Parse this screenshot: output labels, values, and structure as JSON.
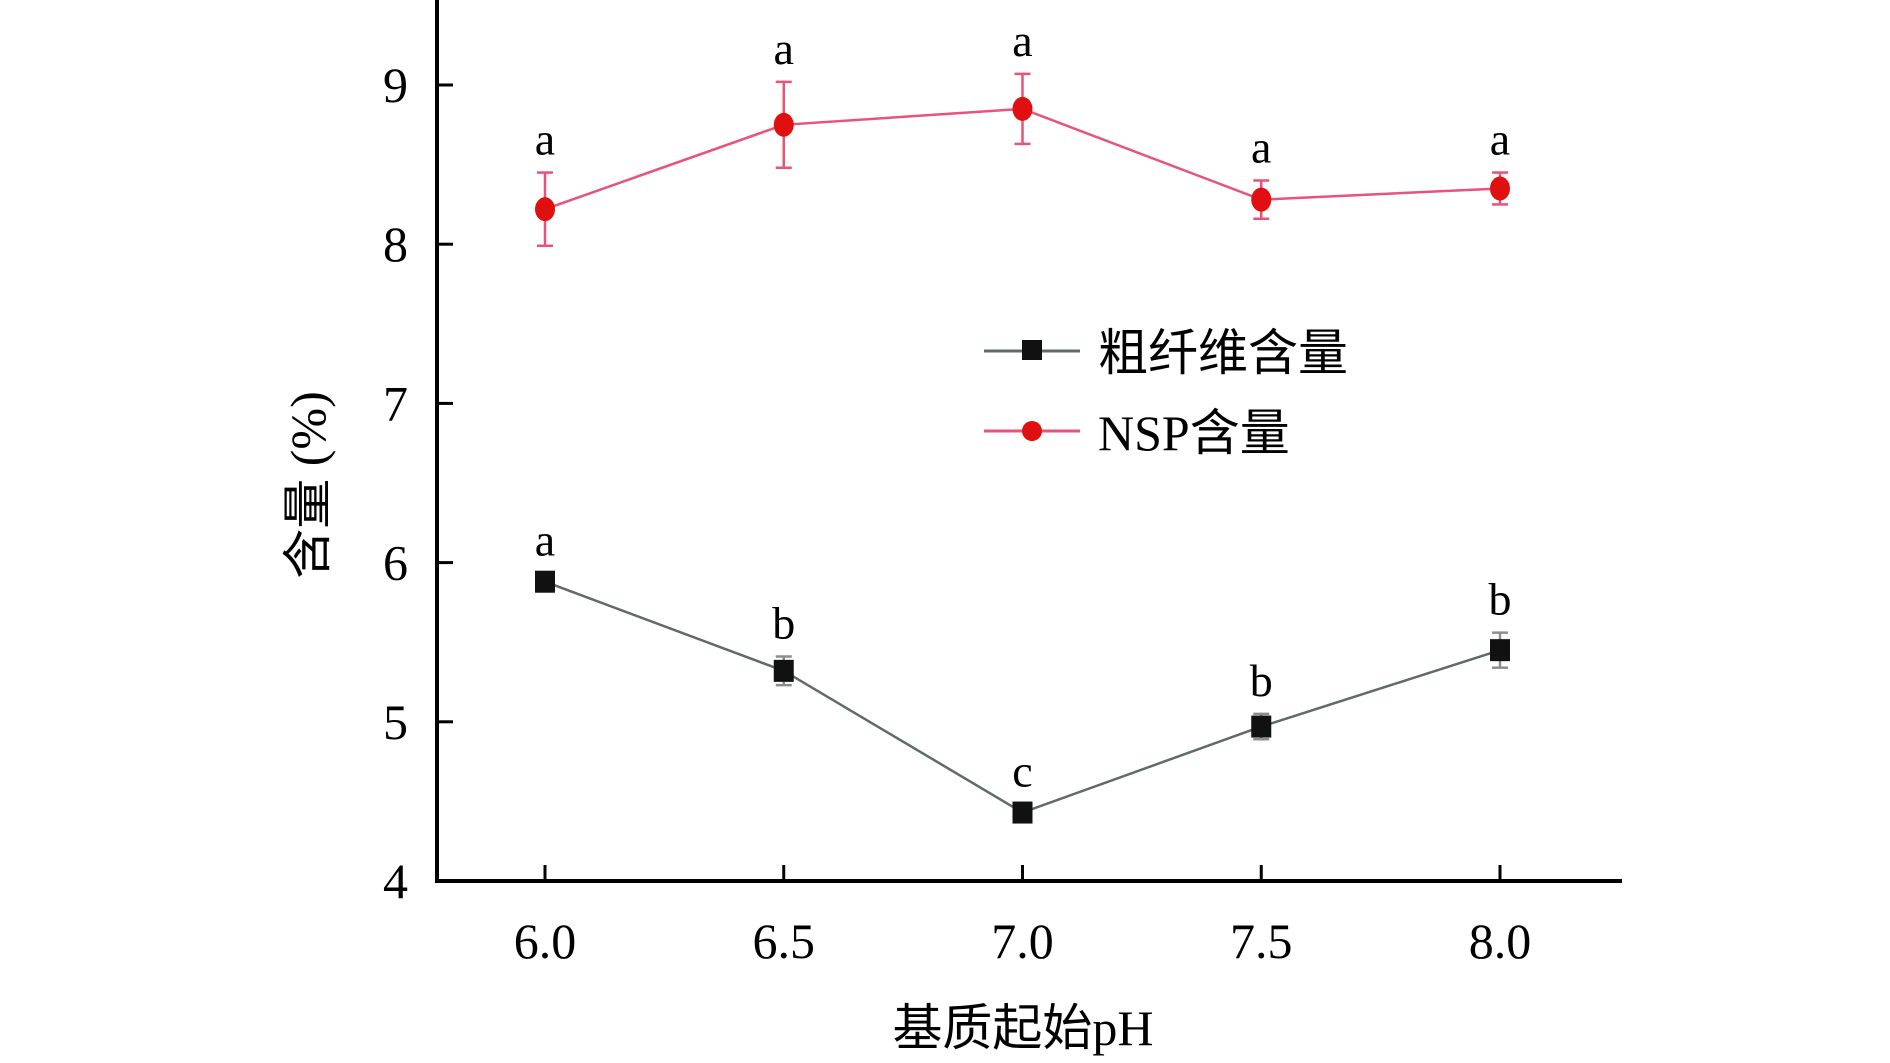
{
  "chart_data": {
    "type": "line",
    "title": "",
    "xlabel": "基质起始pH",
    "ylabel": "含量 (%)",
    "x": [
      6.0,
      6.5,
      7.0,
      7.5,
      8.0
    ],
    "x_tick_labels": [
      "6.0",
      "6.5",
      "7.0",
      "7.5",
      "8.0"
    ],
    "y_ticks": [
      4,
      5,
      6,
      7,
      8,
      9
    ],
    "y_tick_labels": [
      "4",
      "5",
      "6",
      "7",
      "8",
      "9"
    ],
    "ylim": [
      4,
      9.5
    ],
    "xlim": [
      5.77,
      8.25
    ],
    "grid": false,
    "legend_position": "center-right",
    "series": [
      {
        "name": "粗纤维含量",
        "color": "#5f6b66",
        "marker": "square",
        "marker_color": "#111111",
        "values": [
          5.88,
          5.32,
          4.43,
          4.97,
          5.45
        ],
        "errors": [
          0.05,
          0.09,
          0.05,
          0.08,
          0.11
        ],
        "significance": [
          "a",
          "b",
          "c",
          "b",
          "b"
        ]
      },
      {
        "name": "NSP含量",
        "color": "#e8537a",
        "marker": "circle",
        "marker_color": "#e01010",
        "values": [
          8.22,
          8.75,
          8.85,
          8.28,
          8.35
        ],
        "errors": [
          0.23,
          0.27,
          0.22,
          0.12,
          0.1
        ],
        "significance": [
          "a",
          "a",
          "a",
          "a",
          "a"
        ]
      }
    ]
  }
}
